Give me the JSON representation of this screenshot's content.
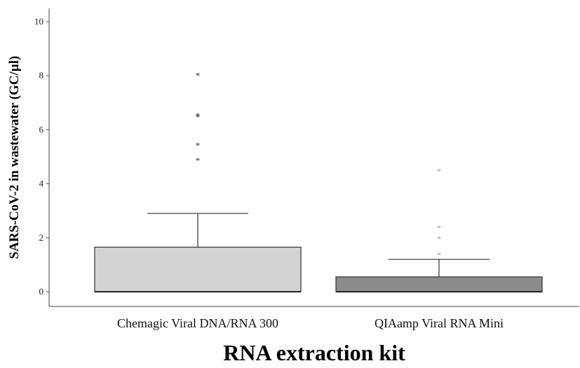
{
  "chart_data": {
    "type": "box",
    "title": "",
    "xlabel": "RNA extraction kit",
    "ylabel": "SARS-CoV-2 in wastewater (GC/µl)",
    "ylim": [
      0,
      10.4
    ],
    "yticks": [
      0,
      2,
      4,
      6,
      8,
      10
    ],
    "grid": false,
    "categories": [
      "Chemagic Viral DNA/RNA 300",
      "QIAamp Viral RNA Mini"
    ],
    "boxes": [
      {
        "category": "Chemagic Viral DNA/RNA 300",
        "whisker_low": 0,
        "q1": 0,
        "median": 0,
        "q3": 1.65,
        "whisker_high": 2.9,
        "outliers": [
          8.05,
          6.55,
          6.5,
          5.45,
          4.9
        ],
        "color": "#d3d3d3",
        "outlier_color": "#333333"
      },
      {
        "category": "QIAamp Viral RNA Mini",
        "whisker_low": 0,
        "q1": 0,
        "median": 0,
        "q3": 0.55,
        "whisker_high": 1.2,
        "outliers": [
          4.5,
          2.4,
          2.0,
          1.4
        ],
        "color": "#8c8c8c",
        "outlier_color": "#a6a6a6"
      }
    ]
  }
}
